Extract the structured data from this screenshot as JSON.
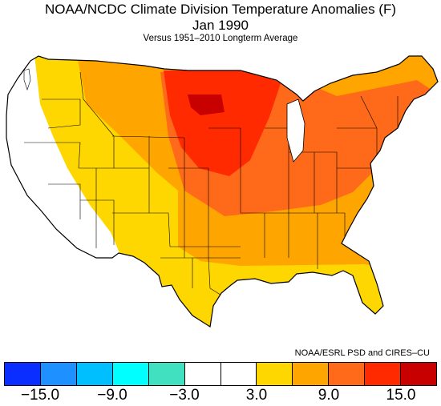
{
  "title": "NOAA/NCDC Climate Division Temperature Anomalies (F)",
  "subtitle": "Jan 1990",
  "note": "Versus 1951–2010 Longterm Average",
  "credit": "NOAA/ESRL PSD and CIRES–CU",
  "legend": {
    "colors": [
      "#0a2eff",
      "#1e90ff",
      "#00bfff",
      "#00ffff",
      "#40e0c0",
      "#ffffff",
      "#ffffff",
      "#ffd700",
      "#ffa500",
      "#ff6a1a",
      "#ff2a00",
      "#c80000"
    ],
    "tick_labels": [
      "−15.0",
      "−9.0",
      "−3.0",
      "3.0",
      "9.0",
      "15.0"
    ]
  },
  "map_regions": [
    {
      "region": "Pacific coast and Great Basin",
      "anomaly_class": "-3.0 to 3.0",
      "color": "#ffffff"
    },
    {
      "region": "Northern Rockies and interior West",
      "anomaly_class": "3.0 to 6.0",
      "color": "#ffd700"
    },
    {
      "region": "Southern Plains and Gulf Coast",
      "anomaly_class": "3.0 to 6.0",
      "color": "#ffd700"
    },
    {
      "region": "Northern Great Plains and Southeast",
      "anomaly_class": "6.0 to 9.0",
      "color": "#ffa500"
    },
    {
      "region": "Midwest, Ohio Valley and Northeast",
      "anomaly_class": "9.0 to 12.0",
      "color": "#ff6a1a"
    },
    {
      "region": "Upper Midwest",
      "anomaly_class": "12.0 to 15.0",
      "color": "#ff2a00"
    },
    {
      "region": "Northeastern North Dakota / northwestern Minnesota",
      "anomaly_class": "above 15.0",
      "color": "#c80000"
    }
  ]
}
